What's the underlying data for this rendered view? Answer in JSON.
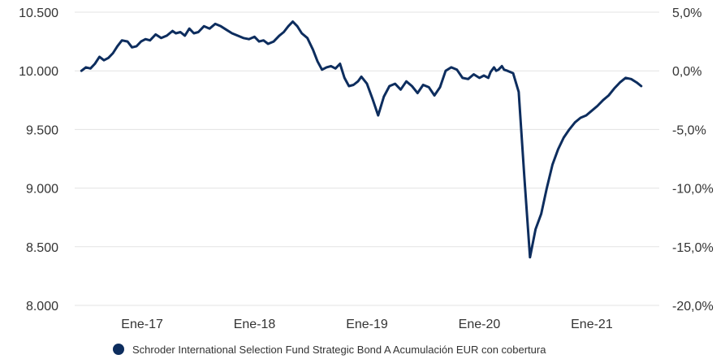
{
  "chart_data": {
    "type": "line",
    "title": "",
    "xlabel": "",
    "ylabel": "",
    "ylim": [
      8000,
      10500
    ],
    "y2lim": [
      -20,
      5
    ],
    "y_ticks": [
      "10.500",
      "10.000",
      "9.500",
      "9.000",
      "8.500",
      "8.000"
    ],
    "y_tick_values": [
      10500,
      10000,
      9500,
      9000,
      8500,
      8000
    ],
    "y2_ticks": [
      "5,0%",
      "0,0%",
      "-5,0%",
      "-10,0%",
      "-15,0%",
      "-20,0%"
    ],
    "y2_tick_values": [
      5,
      0,
      -5,
      -10,
      -15,
      -20
    ],
    "x_ticks": [
      "Ene-17",
      "Ene-18",
      "Ene-19",
      "Ene-20",
      "Ene-21"
    ],
    "x_tick_values": [
      2017.0,
      2018.0,
      2019.0,
      2020.0,
      2021.0
    ],
    "xlim": [
      2016.4,
      2021.6
    ],
    "grid": "horizontal",
    "legend_position": "bottom-center",
    "series": [
      {
        "name": "Schroder International Selection Fund Strategic Bond A Acumulación EUR con cobertura",
        "color": "#0d2d5e",
        "x": [
          2016.46,
          2016.5,
          2016.54,
          2016.58,
          2016.62,
          2016.66,
          2016.7,
          2016.74,
          2016.78,
          2016.82,
          2016.87,
          2016.91,
          2016.95,
          2016.99,
          2017.03,
          2017.07,
          2017.12,
          2017.17,
          2017.22,
          2017.27,
          2017.3,
          2017.34,
          2017.38,
          2017.42,
          2017.46,
          2017.5,
          2017.55,
          2017.6,
          2017.65,
          2017.7,
          2017.75,
          2017.8,
          2017.85,
          2017.9,
          2017.95,
          2018.0,
          2018.04,
          2018.08,
          2018.12,
          2018.17,
          2018.22,
          2018.26,
          2018.3,
          2018.34,
          2018.38,
          2018.42,
          2018.47,
          2018.52,
          2018.56,
          2018.6,
          2018.64,
          2018.68,
          2018.72,
          2018.76,
          2018.8,
          2018.84,
          2018.88,
          2018.92,
          2018.95,
          2019.0,
          2019.05,
          2019.1,
          2019.15,
          2019.2,
          2019.25,
          2019.3,
          2019.35,
          2019.4,
          2019.45,
          2019.5,
          2019.55,
          2019.6,
          2019.65,
          2019.7,
          2019.75,
          2019.8,
          2019.85,
          2019.9,
          2019.95,
          2020.0,
          2020.04,
          2020.08,
          2020.1,
          2020.13,
          2020.15,
          2020.17,
          2020.18,
          2020.2,
          2020.22,
          2020.25,
          2020.3,
          2020.35,
          2020.4,
          2020.45,
          2020.5,
          2020.55,
          2020.6,
          2020.65,
          2020.7,
          2020.75,
          2020.8,
          2020.85,
          2020.9,
          2020.95,
          2021.0,
          2021.05,
          2021.1,
          2021.15,
          2021.2,
          2021.25,
          2021.3,
          2021.35,
          2021.4,
          2021.44
        ],
        "values": [
          10000,
          10030,
          10020,
          10060,
          10120,
          10090,
          10110,
          10150,
          10210,
          10260,
          10250,
          10200,
          10210,
          10250,
          10270,
          10260,
          10310,
          10280,
          10300,
          10340,
          10320,
          10330,
          10300,
          10360,
          10320,
          10330,
          10380,
          10360,
          10400,
          10380,
          10350,
          10320,
          10300,
          10280,
          10270,
          10290,
          10250,
          10260,
          10230,
          10250,
          10300,
          10330,
          10380,
          10420,
          10380,
          10320,
          10280,
          10180,
          10080,
          10010,
          10030,
          10040,
          10020,
          10060,
          9940,
          9870,
          9880,
          9910,
          9950,
          9890,
          9760,
          9620,
          9780,
          9870,
          9890,
          9840,
          9910,
          9870,
          9810,
          9880,
          9860,
          9790,
          9860,
          10000,
          10030,
          10010,
          9940,
          9930,
          9970,
          9940,
          9960,
          9940,
          9990,
          10030,
          10000,
          10010,
          10020,
          10040,
          10010,
          10000,
          9980,
          9820,
          9100,
          8410,
          8650,
          8780,
          9000,
          9200,
          9330,
          9430,
          9500,
          9560,
          9600,
          9620,
          9660,
          9700,
          9750,
          9790,
          9850,
          9900,
          9940,
          9930,
          9900,
          9870
        ]
      }
    ]
  }
}
